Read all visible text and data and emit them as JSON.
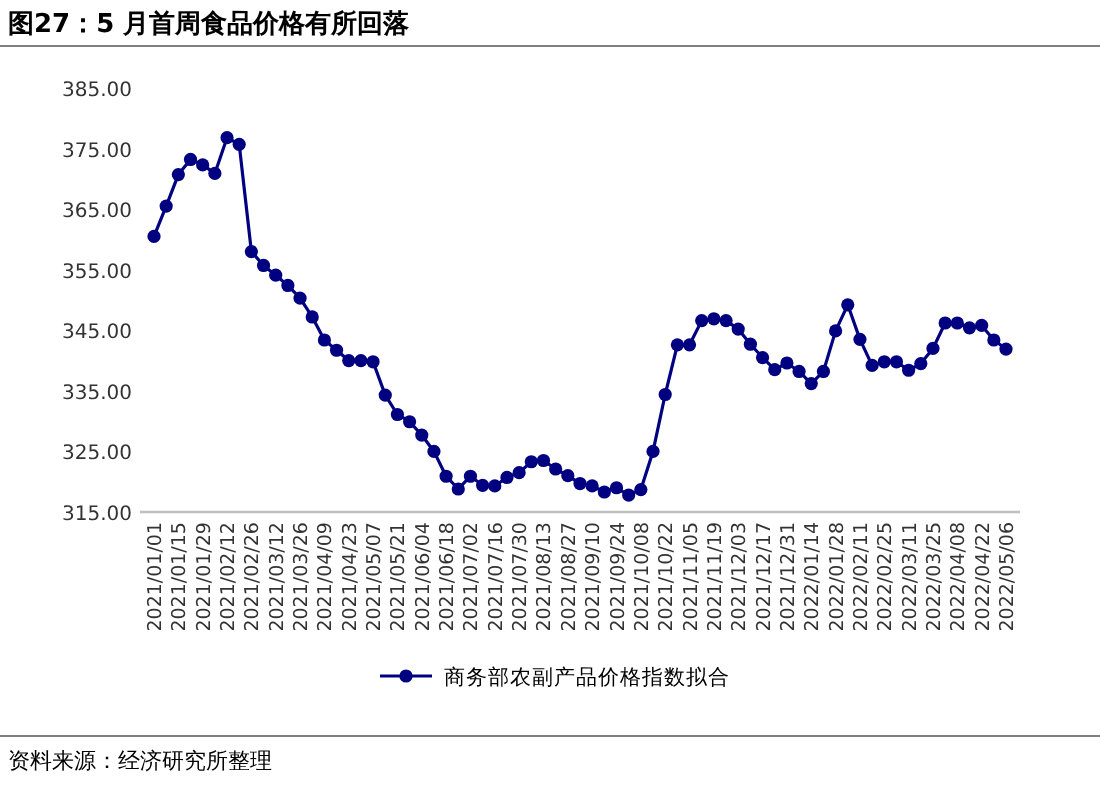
{
  "chart_data": {
    "type": "line",
    "title": "图27：5 月首周食品价格有所回落",
    "categories": [
      "2021/01/01",
      null,
      "2021/01/15",
      null,
      "2021/01/29",
      null,
      "2021/02/12",
      null,
      "2021/02/26",
      null,
      "2021/03/12",
      null,
      "2021/03/26",
      null,
      "2021/04/09",
      null,
      "2021/04/23",
      null,
      "2021/05/07",
      null,
      "2021/05/21",
      null,
      "2021/06/04",
      null,
      "2021/06/18",
      null,
      "2021/07/02",
      null,
      "2021/07/16",
      null,
      "2021/07/30",
      null,
      "2021/08/13",
      null,
      "2021/08/27",
      null,
      "2021/09/10",
      null,
      "2021/09/24",
      null,
      "2021/10/08",
      null,
      "2021/10/22",
      null,
      "2021/11/05",
      null,
      "2021/11/19",
      null,
      "2021/12/03",
      null,
      "2021/12/17",
      null,
      "2021/12/31",
      null,
      "2022/01/14",
      null,
      "2022/01/28",
      null,
      "2022/02/11",
      null,
      "2022/02/25",
      null,
      "2022/03/11",
      null,
      "2022/03/25",
      null,
      "2022/04/08",
      null,
      "2022/04/22",
      null,
      "2022/05/06"
    ],
    "series": [
      {
        "name": "商务部农副产品价格指数拟合",
        "color": "#000080",
        "values": [
          360.5,
          365.5,
          370.7,
          373.2,
          372.3,
          370.9,
          376.8,
          375.7,
          358.0,
          355.7,
          354.1,
          352.4,
          350.3,
          347.2,
          343.4,
          341.7,
          340.0,
          340.0,
          339.8,
          334.3,
          331.1,
          329.9,
          327.7,
          325.0,
          320.9,
          318.8,
          320.9,
          319.4,
          319.3,
          320.7,
          321.5,
          323.3,
          323.5,
          322.1,
          321.0,
          319.7,
          319.3,
          318.3,
          319.0,
          317.8,
          318.7,
          325.0,
          334.4,
          342.6,
          342.6,
          346.6,
          346.9,
          346.6,
          345.2,
          342.7,
          340.5,
          338.5,
          339.6,
          338.2,
          336.2,
          338.2,
          344.9,
          349.2,
          343.5,
          339.2,
          339.8,
          339.8,
          338.4,
          339.5,
          342.0,
          346.2,
          346.2,
          345.4,
          345.8,
          343.4,
          341.9
        ]
      }
    ],
    "ylim": [
      315,
      385
    ],
    "yticks": [
      {
        "value": 315,
        "label": "315.00"
      },
      {
        "value": 325,
        "label": "325.00"
      },
      {
        "value": 335,
        "label": "335.00"
      },
      {
        "value": 345,
        "label": "345.00"
      },
      {
        "value": 355,
        "label": "355.00"
      },
      {
        "value": 365,
        "label": "365.00"
      },
      {
        "value": 375,
        "label": "375.00"
      },
      {
        "value": 385,
        "label": "385.00"
      }
    ],
    "marker": "circle",
    "legend": "bottom",
    "annotations": [
      "资料来源：经济研究所整理"
    ]
  }
}
